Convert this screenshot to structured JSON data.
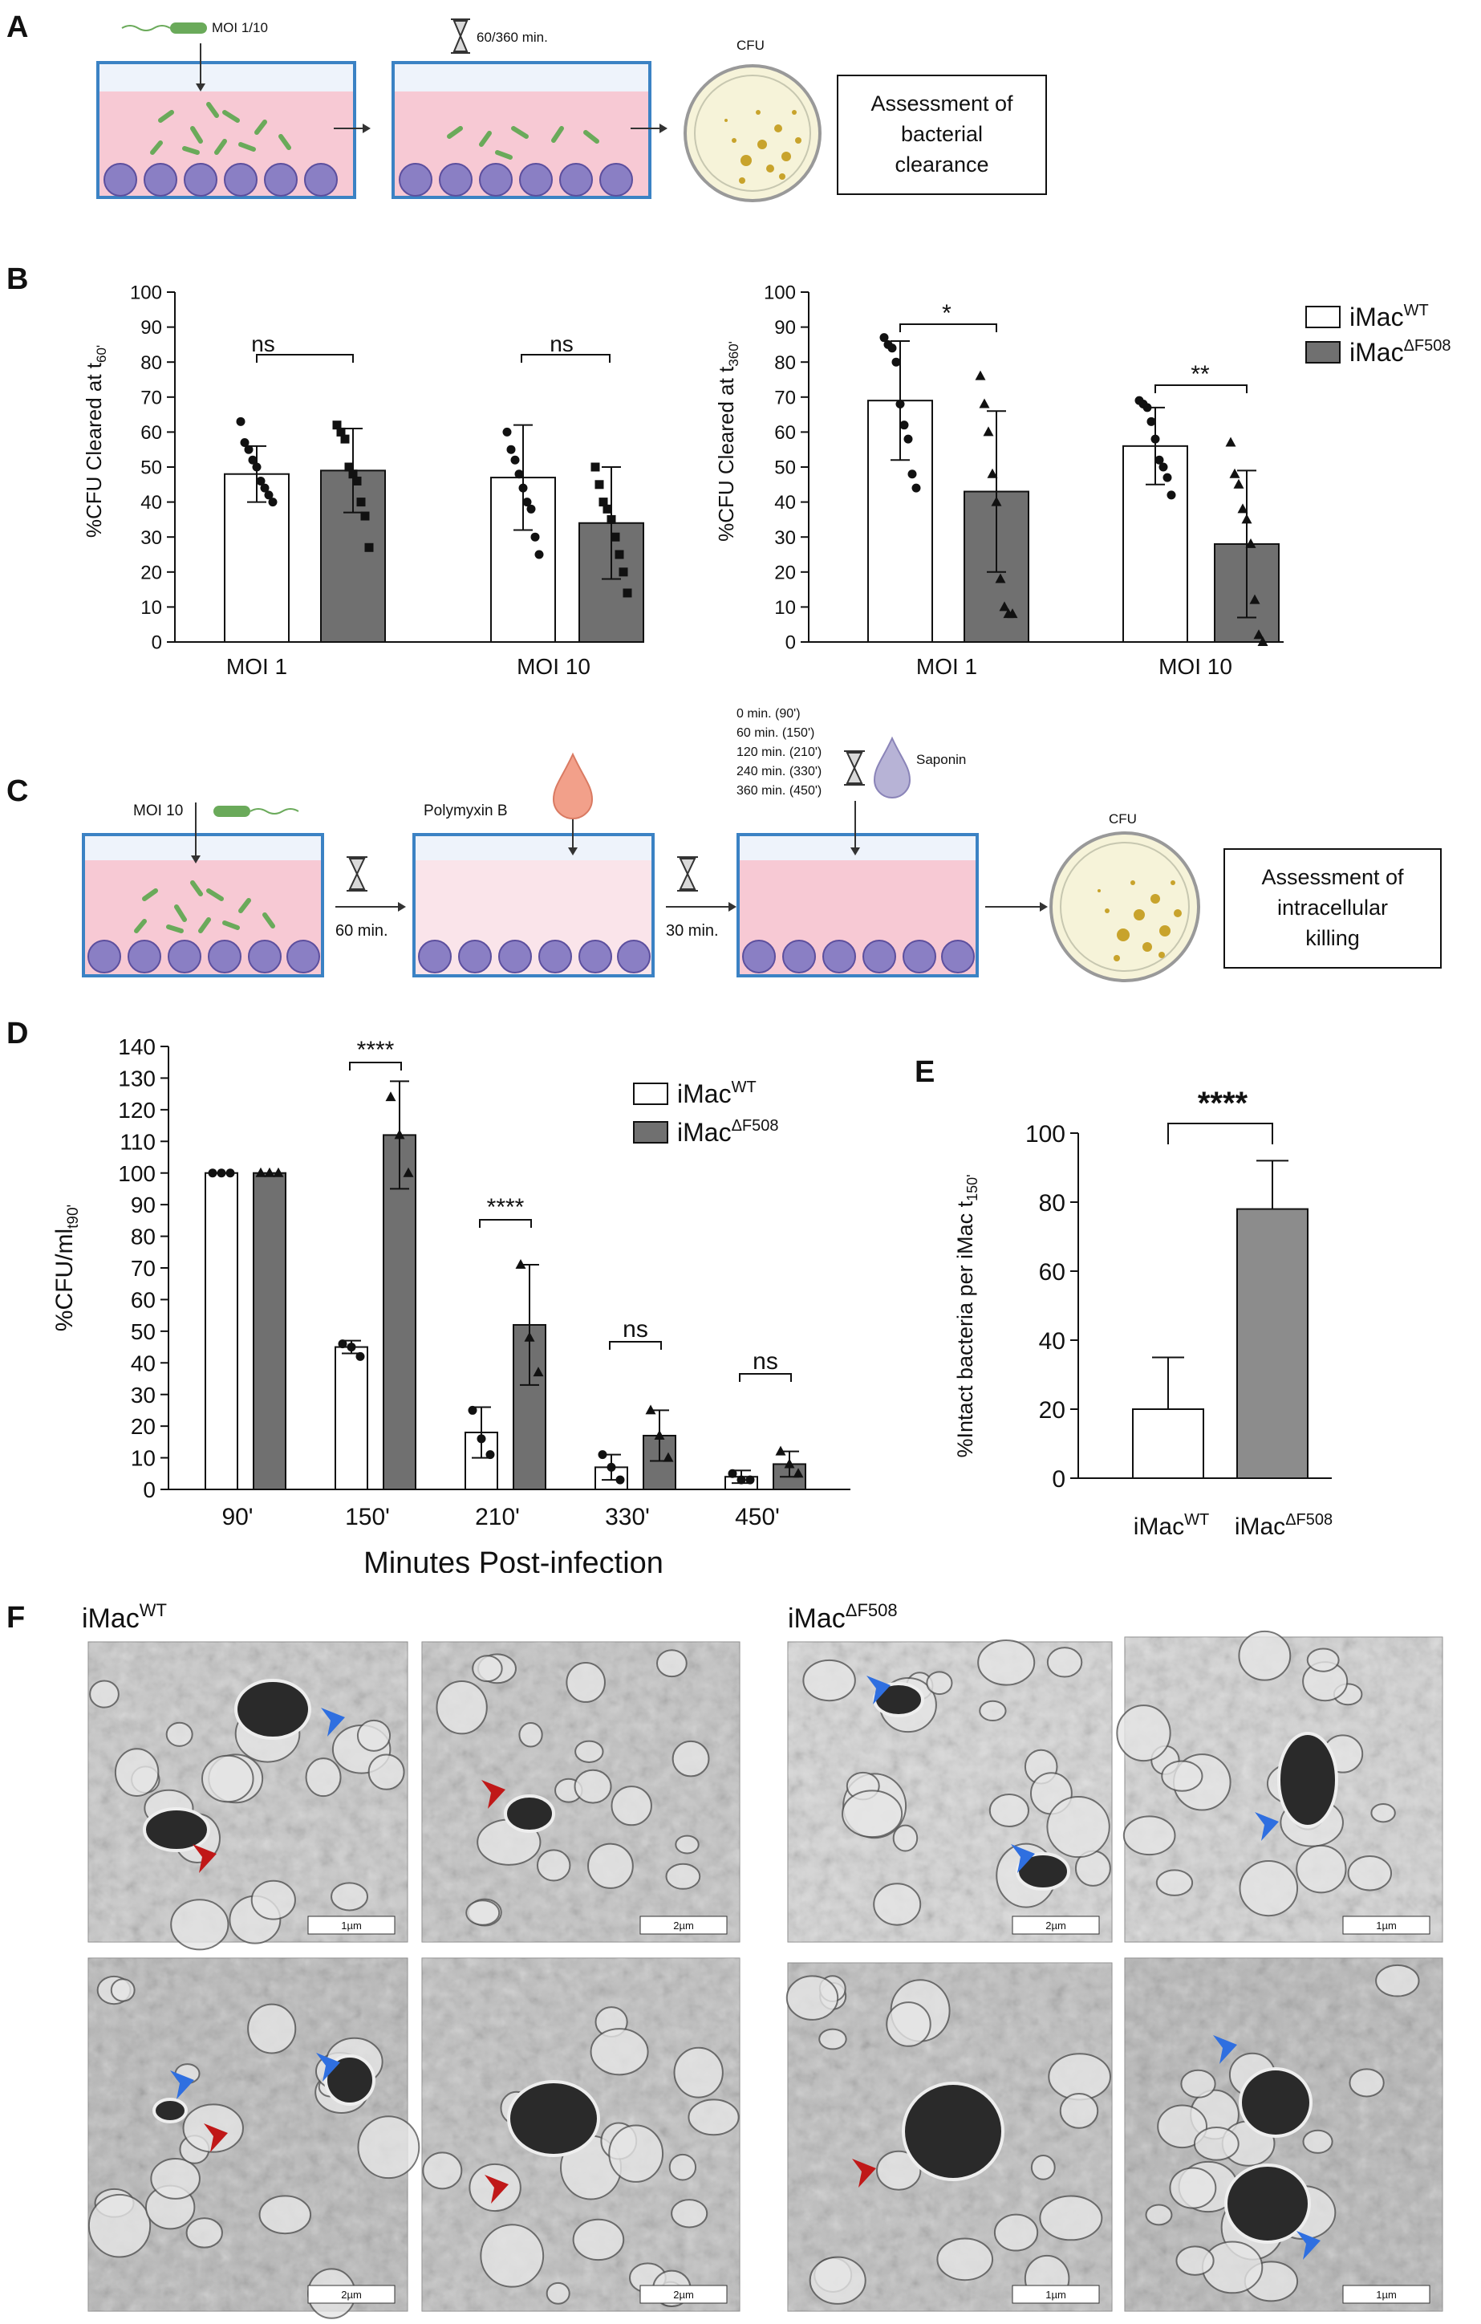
{
  "panels": {
    "A": {
      "letter": "A",
      "moi_label": "MOI 1/10",
      "timer_label": "60/360 min.",
      "cfu_label": "CFU",
      "box_lines": [
        "Assessment of",
        "bacterial",
        "clearance"
      ]
    },
    "B": {
      "letter": "B"
    },
    "C": {
      "letter": "C",
      "moi_label": "MOI 10",
      "polymyxin_label": "Polymyxin B",
      "wait1_label": "60 min.",
      "wait2_label": "30 min.",
      "timepoints": [
        "0 min. (90')",
        "60 min. (150')",
        "120 min. (210')",
        "240 min. (330')",
        "360 min. (450')"
      ],
      "saponin_label": "Saponin",
      "cfu_label": "CFU",
      "box_lines": [
        "Assessment of",
        "intracellular",
        "killing"
      ]
    },
    "D": {
      "letter": "D"
    },
    "E": {
      "letter": "E"
    },
    "F": {
      "letter": "F",
      "wt_label": "iMac",
      "wt_sup": "WT",
      "mut_label": "iMac",
      "mut_sup": "ΔF508",
      "scale_bars": [
        "1µm",
        "2µm",
        "2µm",
        "1µm",
        "2µm",
        "2µm",
        "1µm",
        "1µm"
      ]
    }
  },
  "legend": {
    "wt": "iMac",
    "wt_sup": "WT",
    "mut": "iMac",
    "mut_sup": "ΔF508"
  },
  "colors": {
    "wt_fill": "#ffffff",
    "mut_fill": "#707070",
    "mut_fill_e": "#8c8c8c",
    "well_pink": "#f7c9d4",
    "cell_purple": "#8a7fc4",
    "bacteria_green": "#6aaa5a",
    "arrow_blue": "#2f6fe0",
    "arrow_red": "#c01818"
  },
  "chart_data": [
    {
      "id": "B-left",
      "type": "bar",
      "ylabel": "%CFU Cleared at t60'",
      "ylim": [
        0,
        100
      ],
      "yticks": [
        0,
        10,
        20,
        30,
        40,
        50,
        60,
        70,
        80,
        90,
        100
      ],
      "categories": [
        "MOI 1",
        "MOI 10"
      ],
      "series": [
        {
          "name": "iMacWT",
          "values": [
            48,
            47
          ],
          "err": [
            8,
            15
          ],
          "points": [
            [
              63,
              57,
              55,
              52,
              50,
              46,
              44,
              42,
              40
            ],
            [
              60,
              55,
              52,
              48,
              44,
              40,
              38,
              30,
              25
            ]
          ]
        },
        {
          "name": "iMacΔF508",
          "values": [
            49,
            34
          ],
          "err": [
            12,
            16
          ],
          "points": [
            [
              62,
              60,
              58,
              50,
              48,
              46,
              40,
              36,
              27
            ],
            [
              50,
              45,
              40,
              38,
              35,
              30,
              25,
              20,
              14
            ]
          ]
        }
      ],
      "significance": [
        "ns",
        "ns"
      ]
    },
    {
      "id": "B-right",
      "type": "bar",
      "ylabel": "%CFU Cleared at t360'",
      "ylim": [
        0,
        100
      ],
      "yticks": [
        0,
        10,
        20,
        30,
        40,
        50,
        60,
        70,
        80,
        90,
        100
      ],
      "categories": [
        "MOI 1",
        "MOI 10"
      ],
      "series": [
        {
          "name": "iMacWT",
          "values": [
            69,
            56
          ],
          "err": [
            17,
            11
          ],
          "points": [
            [
              87,
              85,
              84,
              80,
              68,
              62,
              58,
              48,
              44
            ],
            [
              69,
              68,
              67,
              63,
              58,
              52,
              50,
              47,
              42
            ]
          ]
        },
        {
          "name": "iMacΔF508",
          "values": [
            43,
            28
          ],
          "err": [
            23,
            21
          ],
          "points": [
            [
              76,
              68,
              60,
              48,
              40,
              18,
              10,
              8,
              8
            ],
            [
              57,
              48,
              45,
              38,
              35,
              28,
              12,
              2,
              0
            ]
          ]
        }
      ],
      "significance": [
        "*",
        "**"
      ]
    },
    {
      "id": "D",
      "type": "bar",
      "ylabel": "%CFU/mlt90'",
      "xlabel": "Minutes Post-infection",
      "ylim": [
        0,
        140
      ],
      "yticks": [
        0,
        10,
        20,
        30,
        40,
        50,
        60,
        70,
        80,
        90,
        100,
        110,
        120,
        130,
        140
      ],
      "categories": [
        "90'",
        "150'",
        "210'",
        "330'",
        "450'"
      ],
      "series": [
        {
          "name": "iMacWT",
          "values": [
            100,
            45,
            18,
            7,
            4
          ],
          "err": [
            0,
            2,
            8,
            4,
            2
          ],
          "points": [
            [
              100,
              100,
              100
            ],
            [
              46,
              45,
              42
            ],
            [
              25,
              16,
              11
            ],
            [
              11,
              7,
              3
            ],
            [
              5,
              3,
              3
            ]
          ]
        },
        {
          "name": "iMacΔF508",
          "values": [
            100,
            112,
            52,
            17,
            8
          ],
          "err": [
            0,
            17,
            19,
            8,
            4
          ],
          "points": [
            [
              100,
              100,
              100
            ],
            [
              124,
              112,
              100
            ],
            [
              71,
              48,
              37
            ],
            [
              25,
              17,
              10
            ],
            [
              12,
              8,
              5
            ]
          ]
        }
      ],
      "significance": [
        "",
        "****",
        "****",
        "ns",
        "ns"
      ]
    },
    {
      "id": "E",
      "type": "bar",
      "ylabel": "%Intact bacteria per iMac t150'",
      "ylim": [
        0,
        100
      ],
      "yticks": [
        0,
        20,
        40,
        60,
        80,
        100
      ],
      "categories": [
        "iMacWT",
        "iMacΔF508"
      ],
      "values": [
        20,
        78
      ],
      "err": [
        15,
        14
      ],
      "significance": "****"
    }
  ]
}
